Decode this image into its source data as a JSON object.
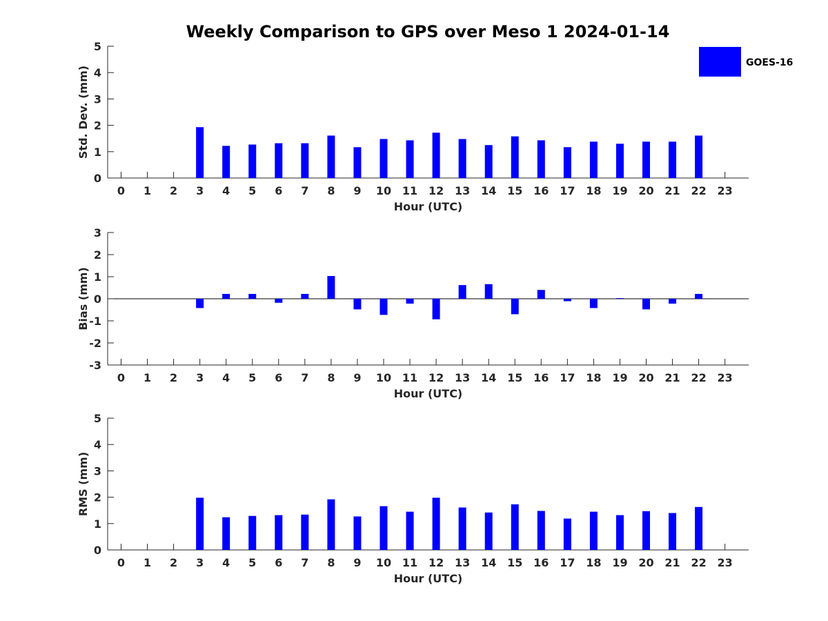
{
  "chart_data": {
    "title": "Weekly Comparison to GPS over Meso 1 2024-01-14",
    "legend": {
      "label": "GOES-16",
      "color": "#0000ff",
      "placement": "top-right"
    },
    "panels": [
      {
        "type": "bar",
        "name": "stddev",
        "xlabel": "Hour (UTC)",
        "ylabel": "Std. Dev. (mm)",
        "ylim": [
          0,
          5
        ],
        "yticks": [
          0,
          1,
          2,
          3,
          4,
          5
        ],
        "zero_line": false,
        "categories": [
          0,
          1,
          2,
          3,
          4,
          5,
          6,
          7,
          8,
          9,
          10,
          11,
          12,
          13,
          14,
          15,
          16,
          17,
          18,
          19,
          20,
          21,
          22,
          23
        ],
        "values": [
          null,
          null,
          null,
          1.93,
          1.22,
          1.27,
          1.32,
          1.32,
          1.61,
          1.17,
          1.48,
          1.43,
          1.72,
          1.48,
          1.25,
          1.58,
          1.43,
          1.17,
          1.38,
          1.3,
          1.38,
          1.38,
          1.61,
          null
        ]
      },
      {
        "type": "bar",
        "name": "bias",
        "xlabel": "Hour (UTC)",
        "ylabel": "Bias (mm)",
        "ylim": [
          -3,
          3
        ],
        "yticks": [
          -3,
          -2,
          -1,
          0,
          1,
          2,
          3
        ],
        "zero_line": true,
        "categories": [
          0,
          1,
          2,
          3,
          4,
          5,
          6,
          7,
          8,
          9,
          10,
          11,
          12,
          13,
          14,
          15,
          16,
          17,
          18,
          19,
          20,
          21,
          22,
          23
        ],
        "values": [
          null,
          null,
          null,
          -0.42,
          0.22,
          0.22,
          -0.18,
          0.22,
          1.03,
          -0.48,
          -0.73,
          -0.22,
          -0.93,
          0.62,
          0.66,
          -0.7,
          0.4,
          -0.11,
          -0.42,
          0.03,
          -0.48,
          -0.22,
          0.22,
          null
        ]
      },
      {
        "type": "bar",
        "name": "rms",
        "xlabel": "Hour (UTC)",
        "ylabel": "RMS (mm)",
        "ylim": [
          0,
          5
        ],
        "yticks": [
          0,
          1,
          2,
          3,
          4,
          5
        ],
        "zero_line": false,
        "categories": [
          0,
          1,
          2,
          3,
          4,
          5,
          6,
          7,
          8,
          9,
          10,
          11,
          12,
          13,
          14,
          15,
          16,
          17,
          18,
          19,
          20,
          21,
          22,
          23
        ],
        "values": [
          null,
          null,
          null,
          1.98,
          1.24,
          1.29,
          1.32,
          1.34,
          1.92,
          1.27,
          1.66,
          1.45,
          1.98,
          1.61,
          1.42,
          1.73,
          1.48,
          1.19,
          1.45,
          1.32,
          1.47,
          1.4,
          1.63,
          null
        ]
      }
    ]
  }
}
